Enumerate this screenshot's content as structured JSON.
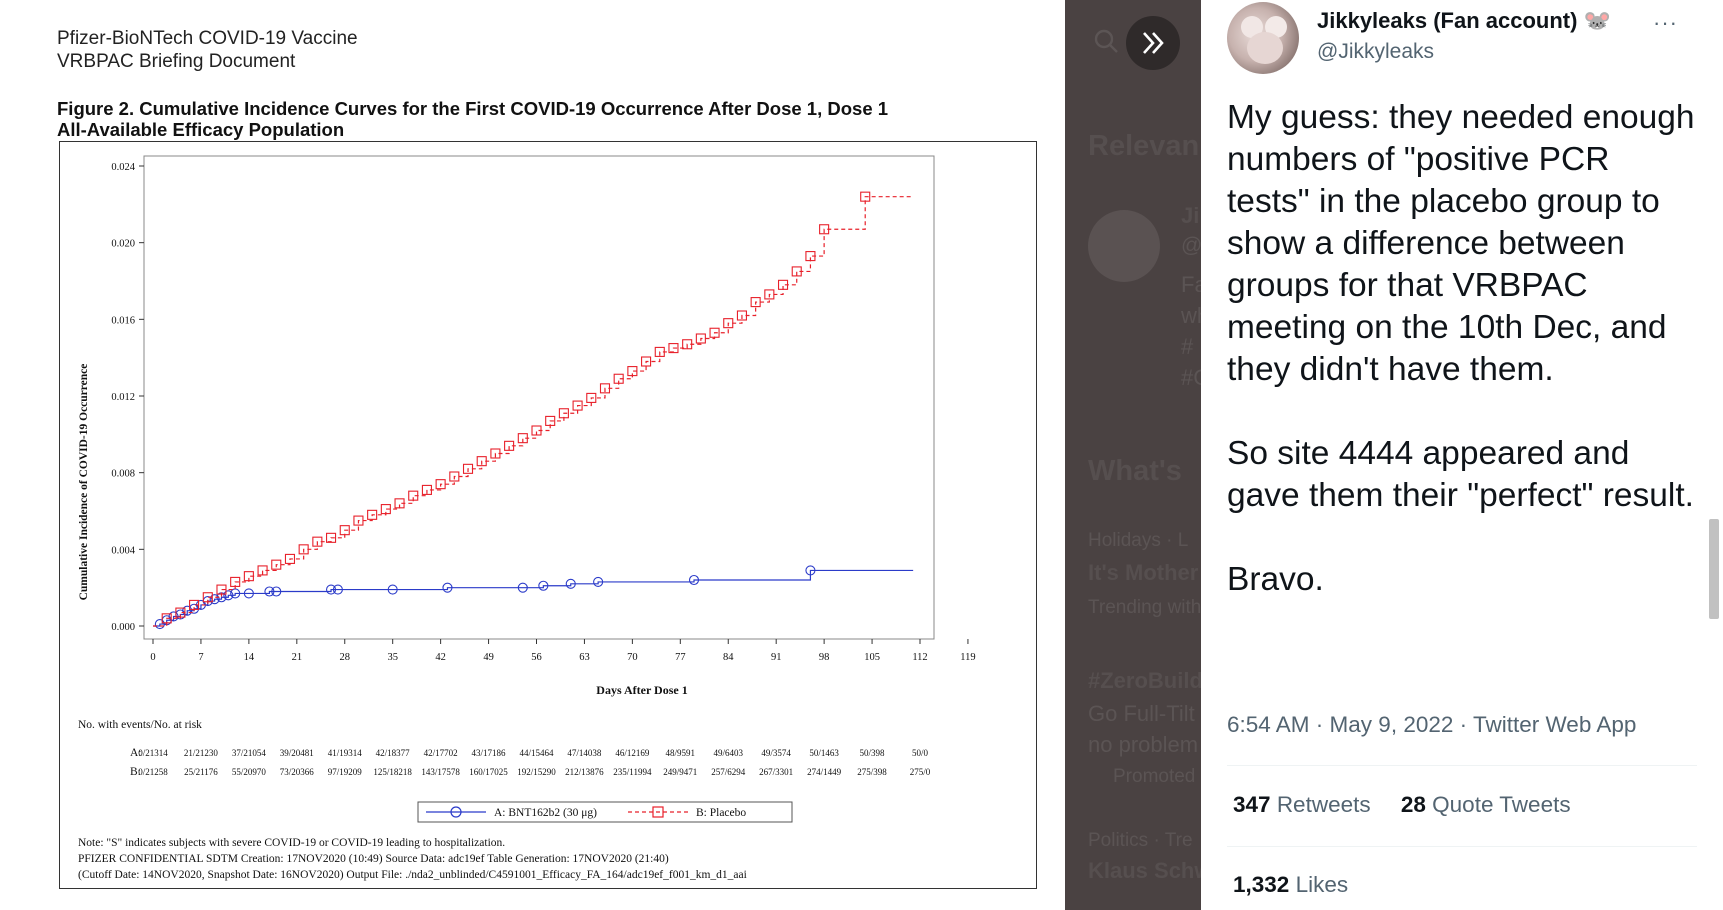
{
  "document": {
    "header_line1": "Pfizer-BioNTech COVID-19 Vaccine",
    "header_line2": "VRBPAC Briefing Document",
    "figure_title_line1": "Figure 2. Cumulative Incidence Curves for the First COVID-19 Occurrence After Dose 1, Dose 1",
    "figure_title_line2": "All-Available Efficacy Population",
    "risk_table": {
      "title": "No. with events/No. at risk",
      "row_a_label": "A:",
      "row_b_label": "B:",
      "row_a": [
        "0/21314",
        "21/21230",
        "37/21054",
        "39/20481",
        "41/19314",
        "42/18377",
        "42/17702",
        "43/17186",
        "44/15464",
        "47/14038",
        "46/12169",
        "48/9591",
        "49/6403",
        "49/3574",
        "50/1463",
        "50/398",
        "50/0"
      ],
      "row_b": [
        "0/21258",
        "25/21176",
        "55/20970",
        "73/20366",
        "97/19209",
        "125/18218",
        "143/17578",
        "160/17025",
        "192/15290",
        "212/13876",
        "235/11994",
        "249/9471",
        "257/6294",
        "267/3301",
        "274/1449",
        "275/398",
        "275/0"
      ]
    },
    "legend": {
      "a": "A: BNT162b2 (30 μg)",
      "b": "B: Placebo"
    },
    "note_line1": "Note: \"S\" indicates subjects with severe COVID-19 or COVID-19 leading to hospitalization.",
    "note_line2": "PFIZER CONFIDENTIAL  SDTM Creation: 17NOV2020 (10:49)  Source Data: adc19ef  Table Generation: 17NOV2020 (21:40)",
    "note_line3": "(Cutoff Date: 14NOV2020, Snapshot Date: 16NOV2020) Output File: ./nda2_unblinded/C4591001_Efficacy_FA_164/adc19ef_f001_km_d1_aai"
  },
  "chart_data": {
    "type": "line",
    "title": "",
    "xlabel": "Days After Dose 1",
    "ylabel": "Cumulative Incidence of COVID-19 Occurrence",
    "xlim": [
      0,
      119
    ],
    "ylim": [
      0,
      0.024
    ],
    "x_ticks": [
      "0",
      "7",
      "14",
      "21",
      "28",
      "35",
      "42",
      "49",
      "56",
      "63",
      "70",
      "77",
      "84",
      "91",
      "98",
      "105",
      "112",
      "119"
    ],
    "y_ticks": [
      "0.000",
      "0.004",
      "0.008",
      "0.012",
      "0.016",
      "0.020",
      "0.024"
    ],
    "series": [
      {
        "name": "A: BNT162b2 (30 μg)",
        "color": "#2b3bc9",
        "marker": "circle",
        "x": [
          0,
          1,
          2,
          3,
          4,
          5,
          6,
          7,
          8,
          9,
          10,
          11,
          12,
          14,
          17,
          18,
          26,
          27,
          35,
          43,
          54,
          57,
          61,
          65,
          79,
          96,
          111
        ],
        "y": [
          0.0,
          0.0001,
          0.0003,
          0.0005,
          0.0006,
          0.0008,
          0.0009,
          0.0011,
          0.0013,
          0.0014,
          0.0015,
          0.0016,
          0.0017,
          0.0017,
          0.0018,
          0.0018,
          0.0019,
          0.0019,
          0.0019,
          0.002,
          0.002,
          0.0021,
          0.0022,
          0.0023,
          0.0024,
          0.0029,
          0.0029
        ]
      },
      {
        "name": "B: Placebo",
        "color": "#e8202a",
        "marker": "square",
        "x": [
          0,
          2,
          4,
          6,
          8,
          10,
          12,
          14,
          16,
          18,
          20,
          22,
          24,
          26,
          28,
          30,
          32,
          34,
          36,
          38,
          40,
          42,
          44,
          46,
          48,
          50,
          52,
          54,
          56,
          58,
          60,
          62,
          64,
          66,
          68,
          70,
          72,
          74,
          76,
          78,
          80,
          82,
          84,
          86,
          88,
          90,
          92,
          94,
          96,
          98,
          104,
          111
        ],
        "y": [
          0.0,
          0.0004,
          0.0007,
          0.0011,
          0.0015,
          0.0019,
          0.0023,
          0.0026,
          0.0029,
          0.0032,
          0.0035,
          0.004,
          0.0044,
          0.0046,
          0.005,
          0.0055,
          0.0058,
          0.0061,
          0.0064,
          0.0068,
          0.0071,
          0.0074,
          0.0078,
          0.0082,
          0.0086,
          0.009,
          0.0094,
          0.0098,
          0.0102,
          0.0107,
          0.0111,
          0.0115,
          0.0119,
          0.0124,
          0.0129,
          0.0133,
          0.0138,
          0.0143,
          0.0145,
          0.0147,
          0.015,
          0.0153,
          0.0158,
          0.0162,
          0.0169,
          0.0173,
          0.0178,
          0.0185,
          0.0193,
          0.0207,
          0.0224,
          0.0224
        ]
      }
    ],
    "legend_position": "bottom"
  },
  "background_page": {
    "relevant_heading": "Relevan",
    "whats_heading": "What's",
    "holidays": "Holidays · L",
    "mothers_day": "It's Mother",
    "trending_with": "Trending with",
    "zerobuild": "#ZeroBuild",
    "go_full": "Go Full-Tilt",
    "no_problem": "no problem",
    "promoted": "Promoted",
    "politics": "Politics · Tre",
    "klaus": "Klaus Schw",
    "side_j": "Jik",
    "side_at": "@",
    "side_fa": "Fa",
    "side_wh": "wh",
    "side_hash1": "#",
    "side_hash2": "#C"
  },
  "tweet": {
    "display_name": "Jikkyleaks (Fan account) 🐭",
    "handle": "@Jikkyleaks",
    "more_label": "···",
    "text": "My guess: they needed enough numbers of \"positive PCR tests\" in the placebo group to show a difference between groups for that VRBPAC meeting on the 10th Dec, and they didn't have them.\n\nSo site 4444 appeared and gave them their \"perfect\" result.\n\nBravo.",
    "meta": "6:54 AM · May 9, 2022 · Twitter Web App",
    "retweets_count": "347",
    "retweets_label": "Retweets",
    "quotes_count": "28",
    "quotes_label": "Quote Tweets",
    "likes_count": "1,332",
    "likes_label": "Likes"
  }
}
